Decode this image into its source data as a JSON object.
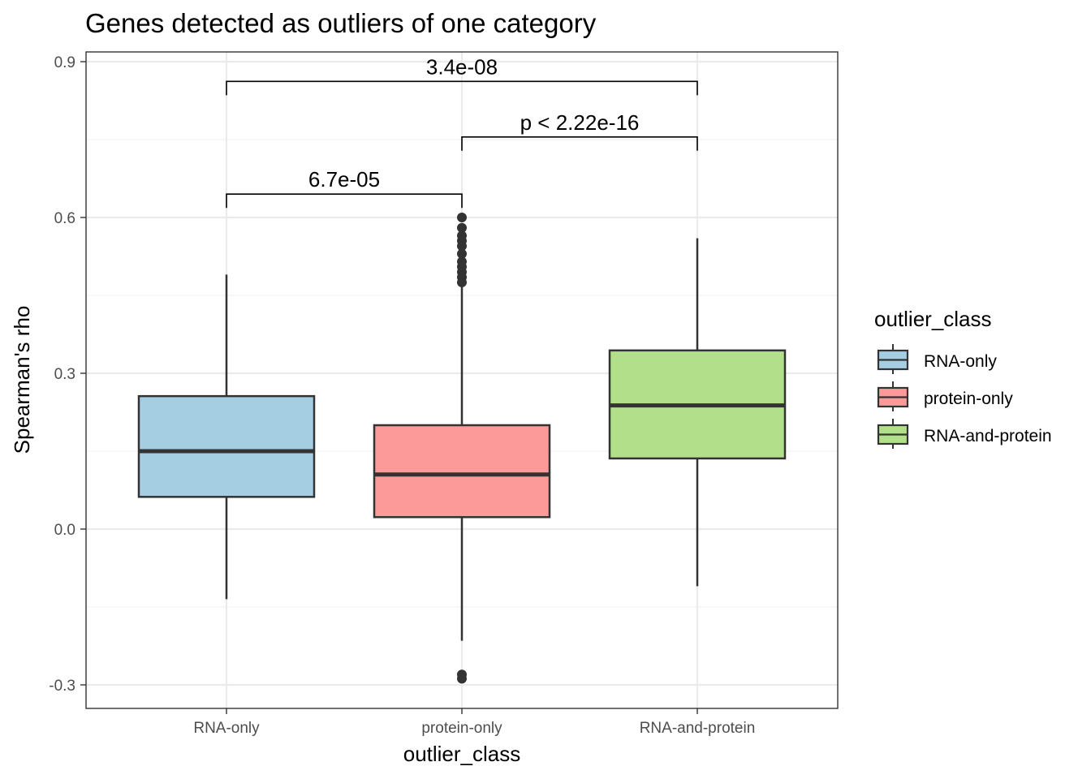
{
  "chart_data": {
    "type": "box",
    "title": "Genes detected as outliers of one category",
    "xlabel": "outlier_class",
    "ylabel": "Spearman's rho",
    "ylim": [
      -0.35,
      0.92
    ],
    "yticks": [
      "-0.3",
      "0.0",
      "0.3",
      "0.6",
      "0.9"
    ],
    "ytick_values": [
      -0.3,
      0.0,
      0.3,
      0.6,
      0.9
    ],
    "grid": true,
    "legend": {
      "title": "outlier_class",
      "placement": "right",
      "entries": [
        {
          "label": "RNA-only",
          "color": "#a6cee3"
        },
        {
          "label": "protein-only",
          "color": "#fb9a99"
        },
        {
          "label": "RNA-and-protein",
          "color": "#b2df8a"
        }
      ]
    },
    "categories": [
      "RNA-only",
      "protein-only",
      "RNA-and-protein"
    ],
    "boxes": [
      {
        "category": "RNA-only",
        "color": "#a6cee3",
        "whisker_low": -0.135,
        "q1": 0.062,
        "median": 0.15,
        "q3": 0.256,
        "whisker_high": 0.49,
        "outliers": []
      },
      {
        "category": "protein-only",
        "color": "#fb9a99",
        "whisker_low": -0.215,
        "q1": 0.023,
        "median": 0.105,
        "q3": 0.2,
        "whisker_high": 0.47,
        "outliers": [
          0.475,
          0.485,
          0.495,
          0.505,
          0.515,
          0.53,
          0.545,
          0.555,
          0.565,
          0.58,
          0.6,
          -0.28,
          -0.288
        ]
      },
      {
        "category": "RNA-and-protein",
        "color": "#b2df8a",
        "whisker_low": -0.11,
        "q1": 0.136,
        "median": 0.238,
        "q3": 0.344,
        "whisker_high": 0.56,
        "outliers": []
      }
    ],
    "comparisons": [
      {
        "from": "RNA-only",
        "to": "protein-only",
        "label": "6.7e-05",
        "y": 0.645
      },
      {
        "from": "protein-only",
        "to": "RNA-and-protein",
        "label": "p < 2.22e-16",
        "y": 0.755
      },
      {
        "from": "RNA-only",
        "to": "RNA-and-protein",
        "label": "3.4e-08",
        "y": 0.862
      }
    ]
  }
}
